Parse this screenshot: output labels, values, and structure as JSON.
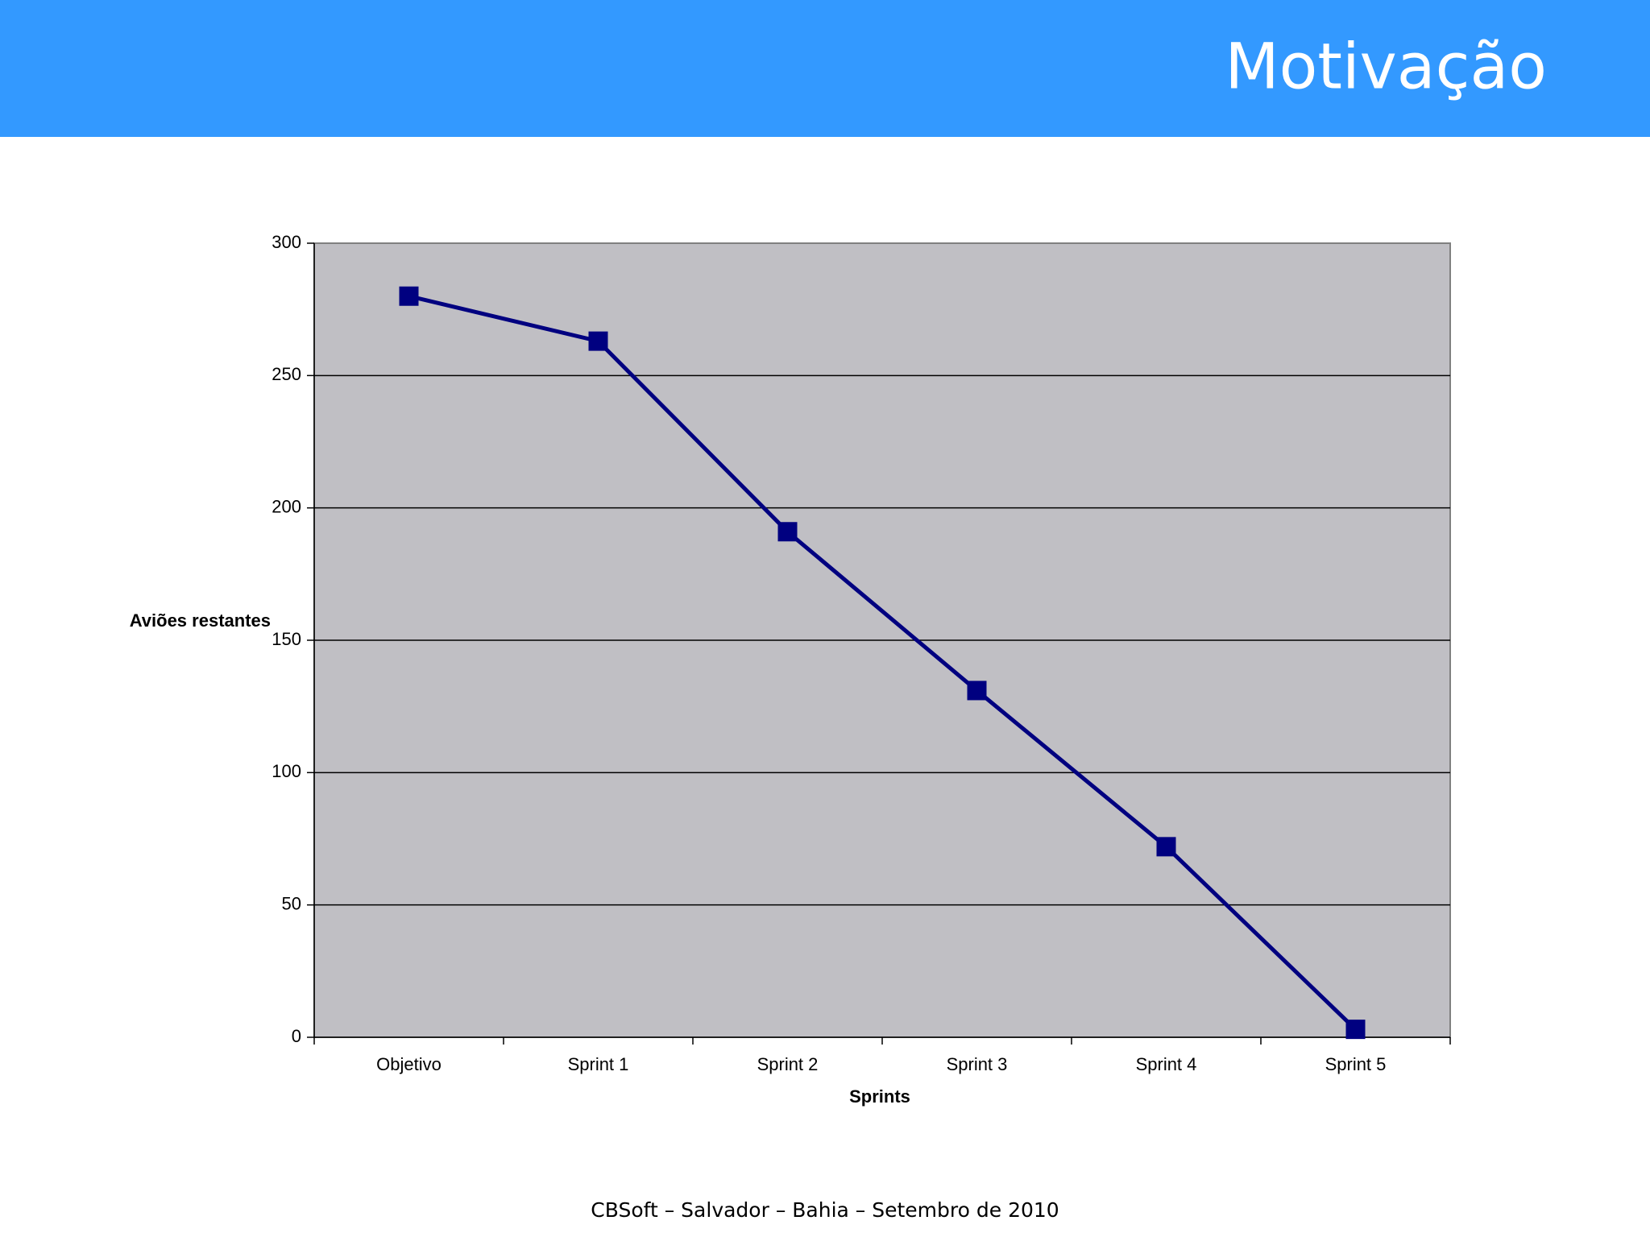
{
  "header": {
    "title": "Motivação"
  },
  "chart_data": {
    "type": "line",
    "y_label": "Aviões restantes",
    "x_label": "Sprints",
    "categories": [
      "Objetivo",
      "Sprint 1",
      "Sprint 2",
      "Sprint 3",
      "Sprint 4",
      "Sprint 5"
    ],
    "values": [
      280,
      263,
      191,
      131,
      72,
      3
    ],
    "color": "#000080",
    "ylim": [
      0,
      300
    ],
    "yticks": [
      0,
      50,
      100,
      150,
      200,
      250,
      300
    ],
    "grid": true
  },
  "footer": {
    "text": "CBSoft – Salvador – Bahia – Setembro de 2010"
  }
}
